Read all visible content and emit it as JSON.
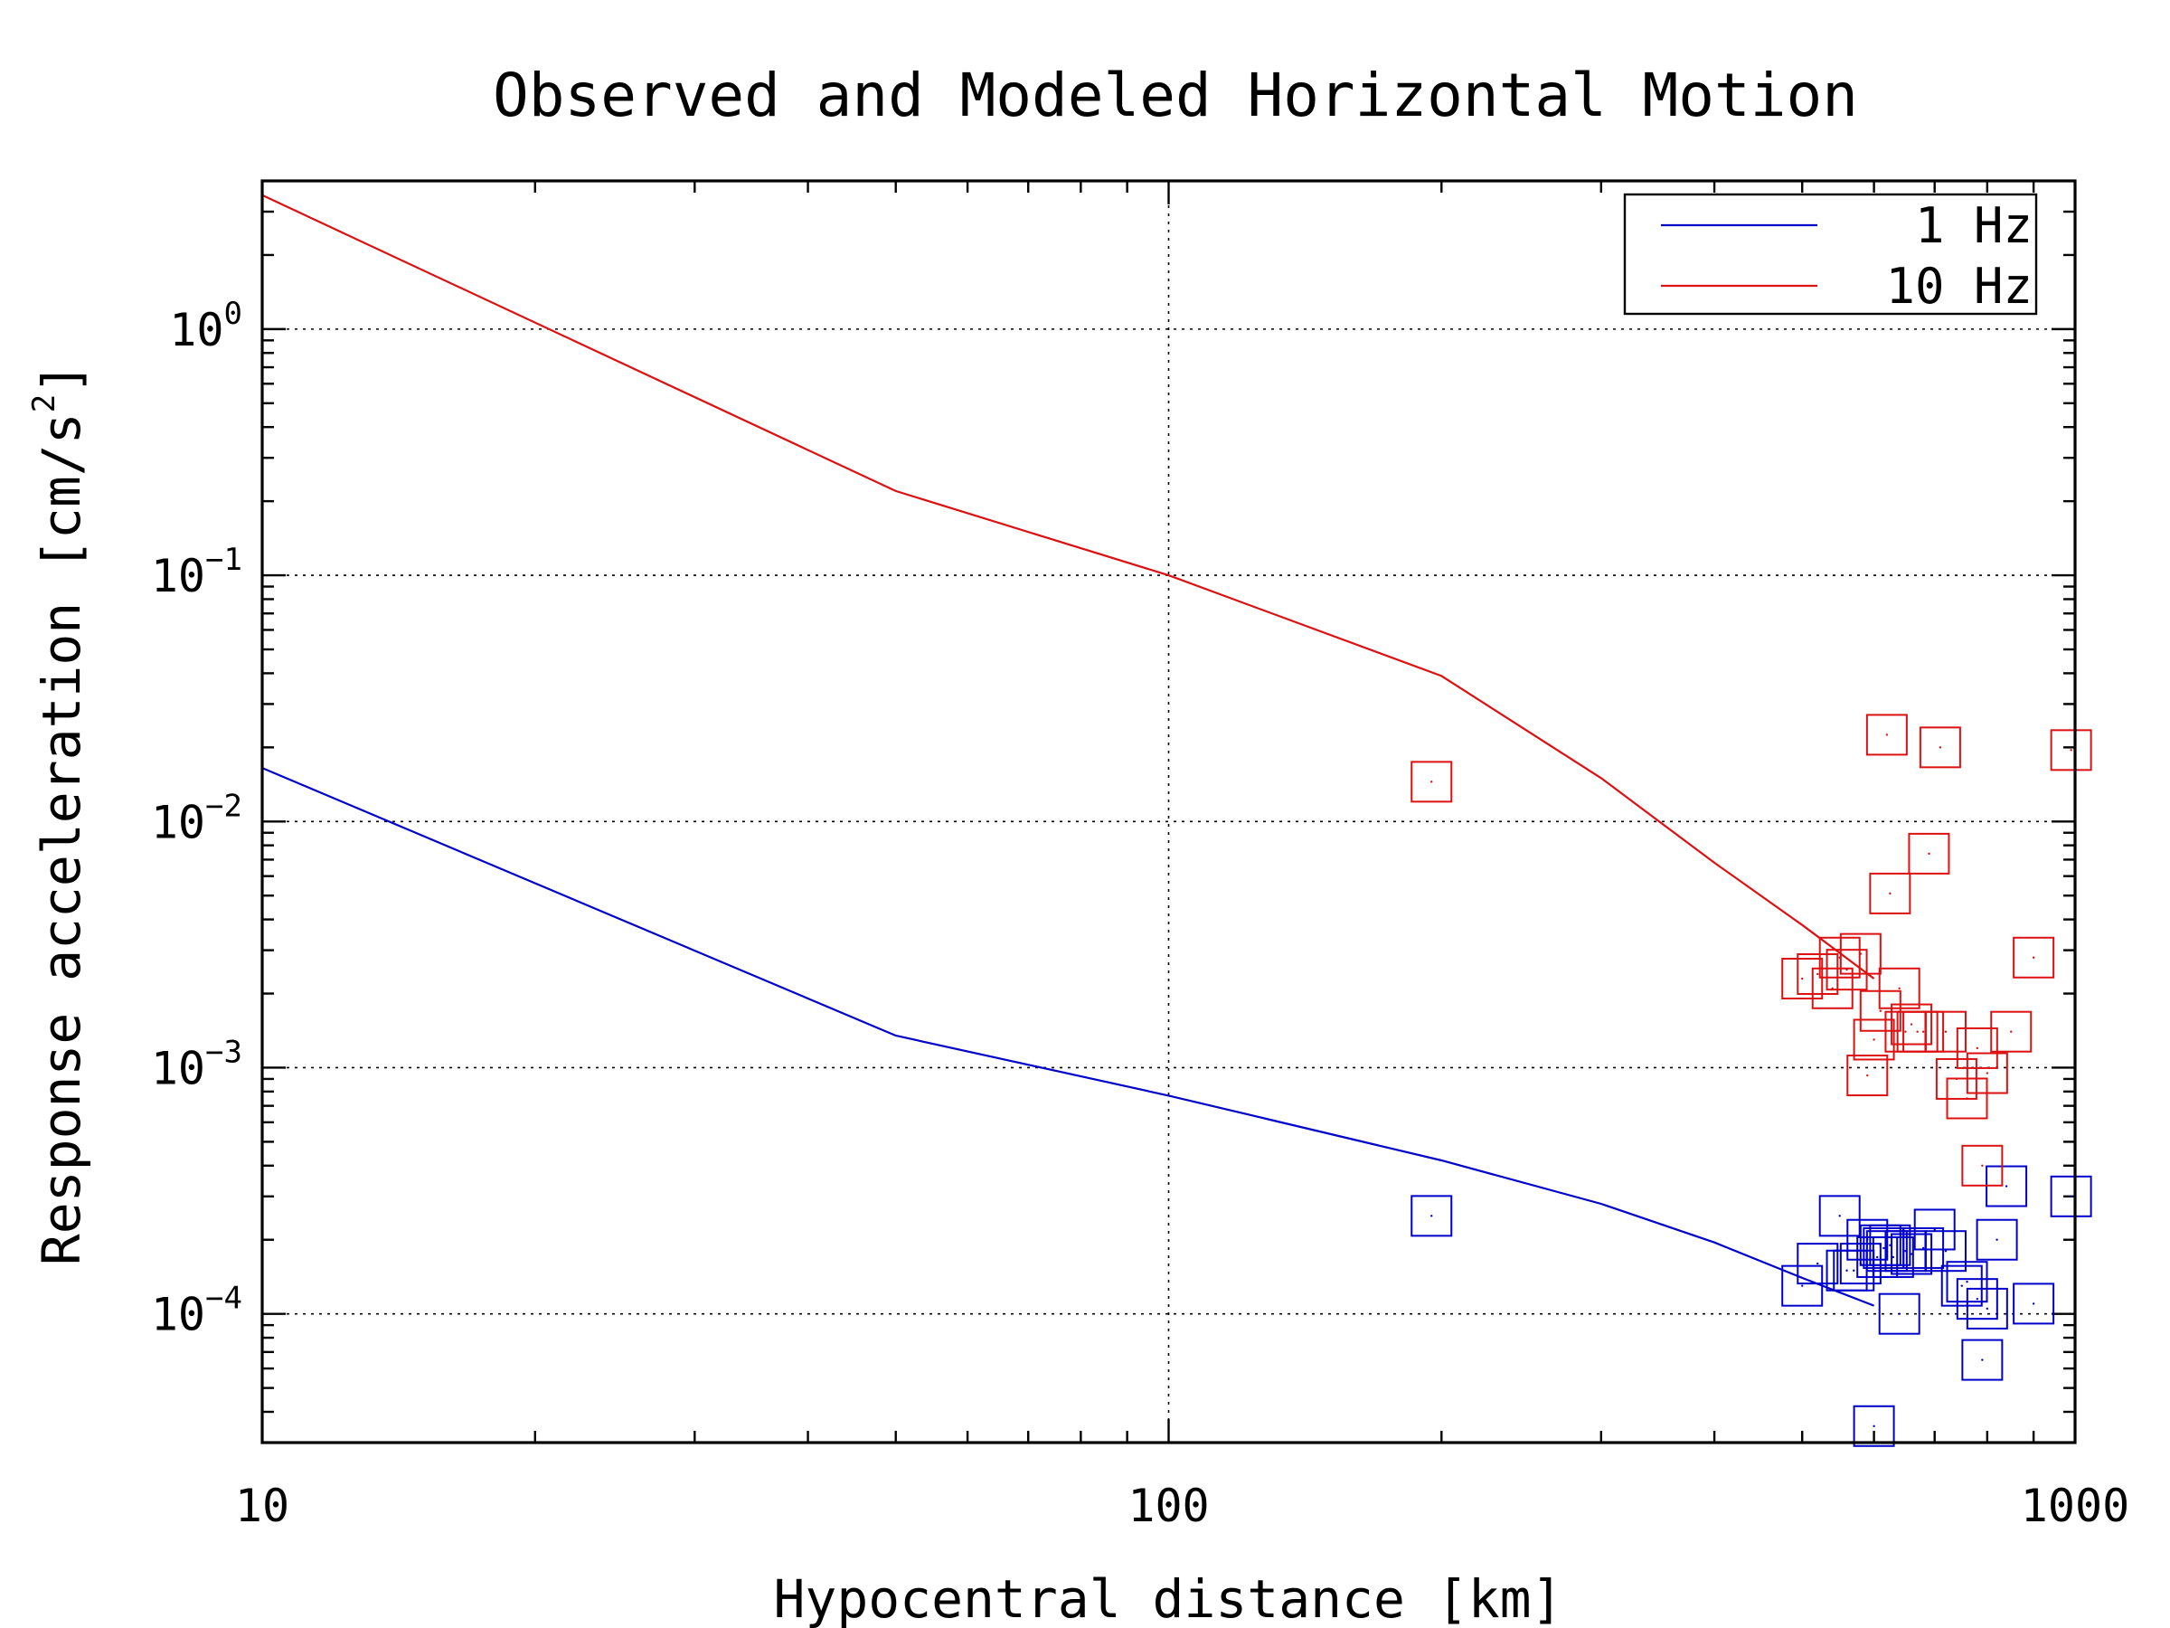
{
  "chart_data": {
    "type": "scatter",
    "title": "Observed and Modeled Horizontal Motion",
    "xlabel": "Hypocentral distance [km]",
    "ylabel": "Response acceleration [cm/s",
    "ylabel_sup": "2",
    "ylabel_end": "]",
    "xscale": "log",
    "yscale": "log",
    "xlim": [
      10,
      1000
    ],
    "ylim": [
      3e-05,
      4
    ],
    "grid": true,
    "legend_position": "top-right",
    "x_ticks": [
      {
        "value": 10,
        "label": "10"
      },
      {
        "value": 100,
        "label": "100"
      },
      {
        "value": 1000,
        "label": "1000"
      }
    ],
    "y_ticks": [
      {
        "value": 1,
        "base": "10",
        "exp": "0"
      },
      {
        "value": 0.1,
        "base": "10",
        "exp": "−1"
      },
      {
        "value": 0.01,
        "base": "10",
        "exp": "−2"
      },
      {
        "value": 0.001,
        "base": "10",
        "exp": "−3"
      },
      {
        "value": 0.0001,
        "base": "10",
        "exp": "−4"
      }
    ],
    "series": [
      {
        "name": "1 Hz",
        "color": "#0000cc",
        "model_line": [
          [
            10,
            0.0165
          ],
          [
            50,
            0.00135
          ],
          [
            100,
            0.00077
          ],
          [
            200,
            0.00042
          ],
          [
            300,
            0.00028
          ],
          [
            400,
            0.000195
          ],
          [
            500,
            0.00014
          ],
          [
            600,
            0.000108
          ]
        ],
        "observed": [
          [
            195,
            0.00025
          ],
          [
            500,
            0.00013
          ],
          [
            520,
            0.00016
          ],
          [
            550,
            0.00025
          ],
          [
            560,
            0.00015
          ],
          [
            570,
            0.00015
          ],
          [
            580,
            0.00016
          ],
          [
            590,
            0.0002
          ],
          [
            600,
            3.5e-05
          ],
          [
            605,
            0.00017
          ],
          [
            610,
            0.00019
          ],
          [
            615,
            0.000185
          ],
          [
            620,
            0.00018
          ],
          [
            625,
            0.00019
          ],
          [
            630,
            0.00017
          ],
          [
            640,
            0.0001
          ],
          [
            650,
            0.00018
          ],
          [
            660,
            0.000175
          ],
          [
            680,
            0.000185
          ],
          [
            700,
            0.00022
          ],
          [
            720,
            0.00018
          ],
          [
            750,
            0.00013
          ],
          [
            760,
            0.000135
          ],
          [
            780,
            0.000115
          ],
          [
            790,
            6.5e-05
          ],
          [
            800,
            0.000105
          ],
          [
            820,
            0.0002
          ],
          [
            840,
            0.00033
          ],
          [
            900,
            0.00011
          ],
          [
            990,
            0.0003
          ]
        ]
      },
      {
        "name": "10 Hz",
        "color": "#dd1111",
        "model_line": [
          [
            10,
            3.5
          ],
          [
            50,
            0.22
          ],
          [
            100,
            0.1
          ],
          [
            200,
            0.039
          ],
          [
            300,
            0.015
          ],
          [
            400,
            0.0068
          ],
          [
            500,
            0.0038
          ],
          [
            600,
            0.0023
          ]
        ],
        "observed": [
          [
            195,
            0.0145
          ],
          [
            500,
            0.0023
          ],
          [
            520,
            0.0024
          ],
          [
            540,
            0.0021
          ],
          [
            550,
            0.0028
          ],
          [
            560,
            0.0025
          ],
          [
            580,
            0.0029
          ],
          [
            590,
            0.00093
          ],
          [
            600,
            0.0013
          ],
          [
            610,
            0.0017
          ],
          [
            620,
            0.0225
          ],
          [
            625,
            0.0051
          ],
          [
            640,
            0.0021
          ],
          [
            650,
            0.0014
          ],
          [
            660,
            0.0015
          ],
          [
            670,
            0.0014
          ],
          [
            680,
            0.0014
          ],
          [
            690,
            0.0074
          ],
          [
            710,
            0.02
          ],
          [
            720,
            0.0014
          ],
          [
            740,
            0.0009
          ],
          [
            760,
            0.00075
          ],
          [
            780,
            0.0012
          ],
          [
            790,
            0.0004
          ],
          [
            800,
            0.00095
          ],
          [
            850,
            0.0014
          ],
          [
            900,
            0.0028
          ],
          [
            990,
            0.0195
          ]
        ]
      }
    ]
  }
}
